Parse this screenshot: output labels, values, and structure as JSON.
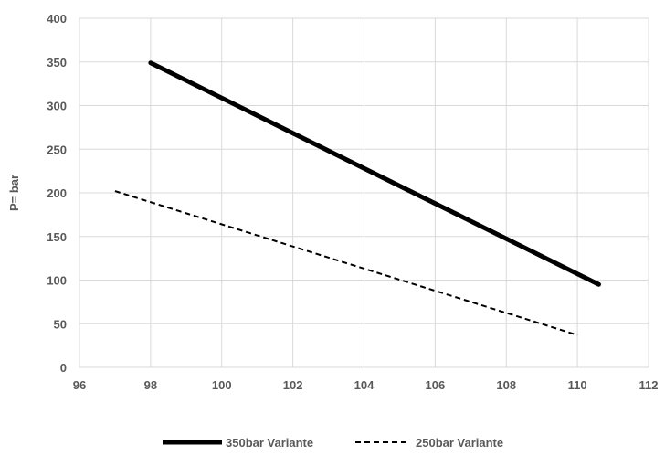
{
  "chart_data": {
    "type": "line",
    "title": "",
    "xlabel": "",
    "ylabel": "P= bar",
    "xlim": [
      96,
      112
    ],
    "ylim": [
      0,
      400
    ],
    "x_ticks": [
      96,
      98,
      100,
      102,
      104,
      106,
      108,
      110,
      112
    ],
    "y_ticks": [
      0,
      50,
      100,
      150,
      200,
      250,
      300,
      350,
      400
    ],
    "grid": true,
    "legend_position": "bottom",
    "series": [
      {
        "name": "350bar Variante",
        "style": "solid-thick",
        "color": "#000000",
        "x": [
          98,
          110.6
        ],
        "y": [
          349,
          95
        ]
      },
      {
        "name": "250bar Variante",
        "style": "dashed",
        "color": "#000000",
        "x": [
          97,
          110
        ],
        "y": [
          202,
          37
        ]
      }
    ]
  }
}
